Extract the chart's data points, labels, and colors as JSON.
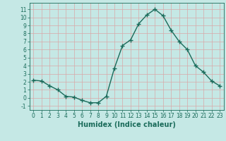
{
  "x": [
    0,
    1,
    2,
    3,
    4,
    5,
    6,
    7,
    8,
    9,
    10,
    11,
    12,
    13,
    14,
    15,
    16,
    17,
    18,
    19,
    20,
    21,
    22,
    23
  ],
  "y": [
    2.2,
    2.1,
    1.5,
    1.0,
    0.2,
    0.1,
    -0.3,
    -0.6,
    -0.6,
    0.2,
    3.7,
    6.5,
    7.2,
    9.2,
    10.3,
    11.0,
    10.2,
    8.4,
    7.0,
    6.0,
    4.0,
    3.2,
    2.1,
    1.5
  ],
  "line_color": "#1a6b5a",
  "marker": "+",
  "marker_size": 4,
  "bg_color": "#c5e8e5",
  "grid_color": "#d9a8a8",
  "xlabel": "Humidex (Indice chaleur)",
  "ylim": [
    -1.5,
    11.8
  ],
  "xlim": [
    -0.5,
    23.5
  ],
  "yticks": [
    -1,
    0,
    1,
    2,
    3,
    4,
    5,
    6,
    7,
    8,
    9,
    10,
    11
  ],
  "xticks": [
    0,
    1,
    2,
    3,
    4,
    5,
    6,
    7,
    8,
    9,
    10,
    11,
    12,
    13,
    14,
    15,
    16,
    17,
    18,
    19,
    20,
    21,
    22,
    23
  ],
  "line_width": 1.0,
  "tick_fontsize": 5.5,
  "label_fontsize": 7
}
